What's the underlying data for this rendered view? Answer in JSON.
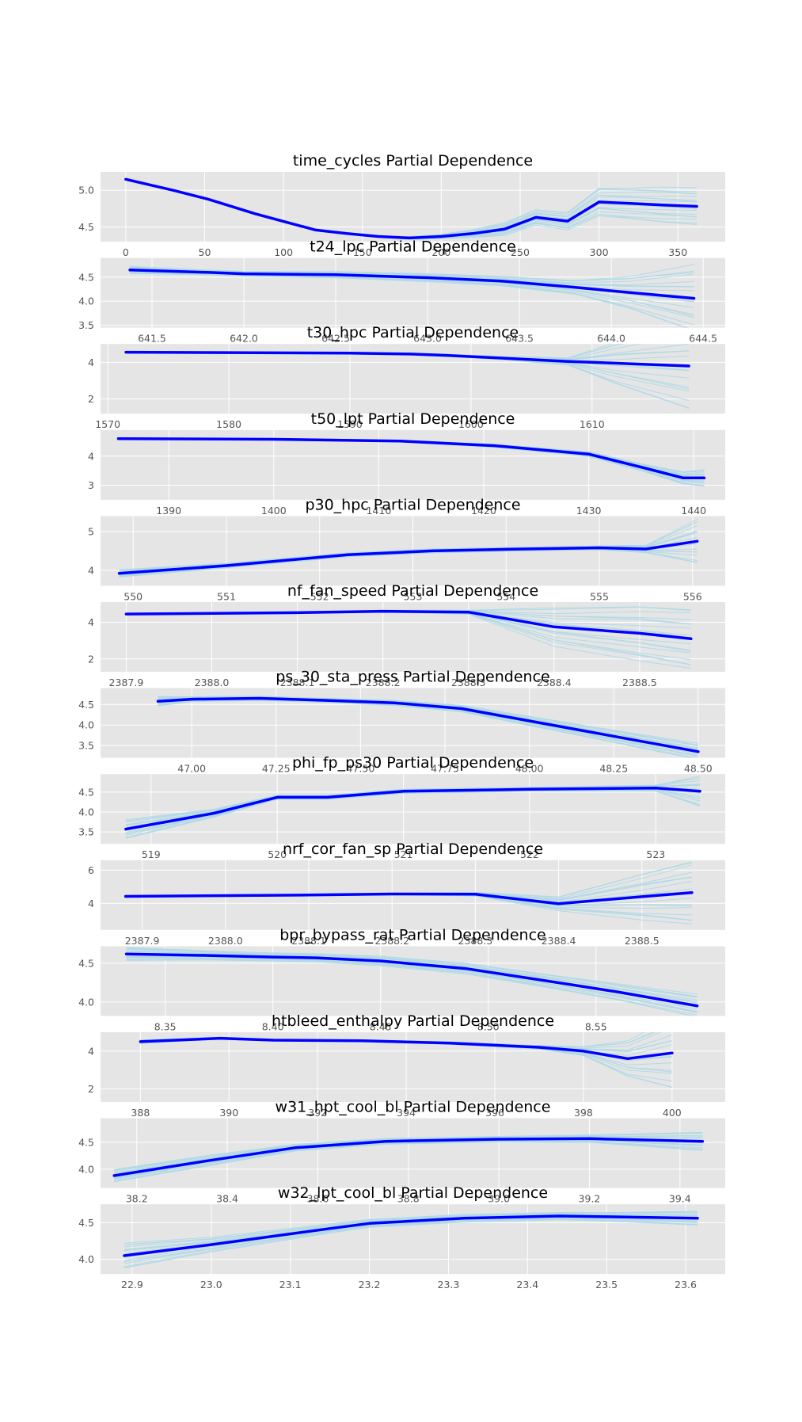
{
  "colors": {
    "panel_bg": "#e5e5e5",
    "grid": "#ffffff",
    "ice_lines": "#add8e6",
    "pd_line": "#0000ff"
  },
  "chart_data": [
    {
      "type": "line",
      "title": "time_cycles Partial Dependence",
      "grid": true,
      "xlim": [
        -16,
        380
      ],
      "ylim": [
        4.3,
        5.25
      ],
      "xticks": [
        0,
        50,
        100,
        150,
        200,
        250,
        300,
        350
      ],
      "xtick_labels": [
        "0",
        "50",
        "100",
        "150",
        "200",
        "250",
        "300",
        "350"
      ],
      "yticks": [
        4.5,
        5.0
      ],
      "ytick_labels": [
        "4.5",
        "5.0"
      ],
      "x": [
        0,
        30,
        52,
        82,
        120,
        140,
        160,
        180,
        200,
        220,
        240,
        260,
        280,
        300,
        320,
        340,
        362
      ],
      "pd": [
        5.15,
        5.0,
        4.88,
        4.68,
        4.46,
        4.41,
        4.37,
        4.35,
        4.37,
        4.41,
        4.47,
        4.63,
        4.58,
        4.84,
        4.82,
        4.8,
        4.78
      ],
      "ice_spread": [
        0,
        0,
        0,
        0,
        0,
        0.01,
        0.01,
        0.02,
        0.03,
        0.05,
        0.08,
        0.1,
        0.12,
        0.2,
        0.22,
        0.24,
        0.24
      ]
    },
    {
      "type": "line",
      "title": "t24_lpc Partial Dependence",
      "grid": true,
      "xlim": [
        641.22,
        644.62
      ],
      "ylim": [
        3.45,
        4.9
      ],
      "xticks": [
        641.5,
        642.0,
        642.5,
        643.0,
        643.5,
        644.0,
        644.5
      ],
      "xtick_labels": [
        "641.5",
        "642.0",
        "642.5",
        "643.0",
        "643.5",
        "644.0",
        "644.5"
      ],
      "yticks": [
        3.5,
        4.0,
        4.5
      ],
      "ytick_labels": [
        "3.5",
        "4.0",
        "4.5"
      ],
      "x": [
        641.38,
        641.8,
        642.0,
        642.5,
        643.0,
        643.4,
        643.8,
        644.1,
        644.45
      ],
      "pd": [
        4.65,
        4.6,
        4.57,
        4.55,
        4.49,
        4.42,
        4.29,
        4.18,
        4.06
      ],
      "ice_spread": [
        0.08,
        0.05,
        0.05,
        0.06,
        0.08,
        0.1,
        0.15,
        0.35,
        0.7
      ]
    },
    {
      "type": "line",
      "title": "t30_hpc Partial Dependence",
      "grid": true,
      "xlim": [
        1569.4,
        1621.0
      ],
      "ylim": [
        1.2,
        5.0
      ],
      "xticks": [
        1570,
        1580,
        1590,
        1600,
        1610
      ],
      "xtick_labels": [
        "1570",
        "1580",
        "1590",
        "1600",
        "1610"
      ],
      "yticks": [
        2,
        4
      ],
      "ytick_labels": [
        "2",
        "4"
      ],
      "x": [
        1571.5,
        1580,
        1590,
        1595,
        1598,
        1602,
        1608,
        1612,
        1618
      ],
      "pd": [
        4.55,
        4.53,
        4.5,
        4.45,
        4.38,
        4.25,
        4.05,
        3.95,
        3.8
      ],
      "ice_spread": [
        0.05,
        0.05,
        0.05,
        0.05,
        0.06,
        0.08,
        0.2,
        1.2,
        2.4
      ]
    },
    {
      "type": "line",
      "title": "t50_lpt Partial Dependence",
      "grid": true,
      "xlim": [
        1383.5,
        1443.0
      ],
      "ylim": [
        2.5,
        4.9
      ],
      "xticks": [
        1390,
        1400,
        1410,
        1420,
        1430,
        1440
      ],
      "xtick_labels": [
        "1390",
        "1400",
        "1410",
        "1420",
        "1430",
        "1440"
      ],
      "yticks": [
        3,
        4
      ],
      "ytick_labels": [
        "3",
        "4"
      ],
      "x": [
        1385.2,
        1400,
        1412,
        1421,
        1430,
        1435,
        1439,
        1441
      ],
      "pd": [
        4.6,
        4.58,
        4.52,
        4.36,
        4.07,
        3.62,
        3.25,
        3.25
      ],
      "ice_spread": [
        0.03,
        0.03,
        0.03,
        0.05,
        0.08,
        0.12,
        0.22,
        0.3
      ]
    },
    {
      "type": "line",
      "title": "p30_hpc Partial Dependence",
      "grid": true,
      "xlim": [
        549.65,
        556.35
      ],
      "ylim": [
        3.6,
        5.4
      ],
      "xticks": [
        550,
        551,
        552,
        553,
        554,
        555,
        556
      ],
      "xtick_labels": [
        "550",
        "551",
        "552",
        "553",
        "554",
        "555",
        "556"
      ],
      "yticks": [
        4,
        5
      ],
      "ytick_labels": [
        "4",
        "5"
      ],
      "x": [
        549.85,
        551.0,
        552.3,
        553.2,
        554.0,
        555.0,
        555.5,
        556.05
      ],
      "pd": [
        3.92,
        4.12,
        4.4,
        4.5,
        4.54,
        4.58,
        4.55,
        4.75
      ],
      "ice_spread": [
        0.1,
        0.06,
        0.05,
        0.05,
        0.05,
        0.05,
        0.1,
        0.6
      ]
    },
    {
      "type": "line",
      "title": "nf_fan_speed Partial Dependence",
      "grid": true,
      "xlim": [
        2387.87,
        2388.6
      ],
      "ylim": [
        1.3,
        5.1
      ],
      "xticks": [
        2387.9,
        2388.0,
        2388.1,
        2388.2,
        2388.3,
        2388.4,
        2388.5
      ],
      "xtick_labels": [
        "2387.9",
        "2388.0",
        "2388.1",
        "2388.2",
        "2388.3",
        "2388.4",
        "2388.5"
      ],
      "yticks": [
        2,
        4
      ],
      "ytick_labels": [
        "2",
        "4"
      ],
      "x": [
        2387.9,
        2388.1,
        2388.2,
        2388.3,
        2388.4,
        2388.5,
        2388.56
      ],
      "pd": [
        4.45,
        4.52,
        4.6,
        4.55,
        3.75,
        3.4,
        3.1
      ],
      "ice_spread": [
        0.05,
        0.05,
        0.05,
        0.1,
        1.0,
        1.5,
        1.7
      ]
    },
    {
      "type": "line",
      "title": "ps_30_sta_press Partial Dependence",
      "grid": true,
      "xlim": [
        46.73,
        48.58
      ],
      "ylim": [
        3.2,
        4.9
      ],
      "xticks": [
        47.0,
        47.25,
        47.5,
        47.75,
        48.0,
        48.25,
        48.5
      ],
      "xtick_labels": [
        "47.00",
        "47.25",
        "47.50",
        "47.75",
        "48.00",
        "48.25",
        "48.50"
      ],
      "yticks": [
        3.5,
        4.0,
        4.5
      ],
      "ytick_labels": [
        "3.5",
        "4.0",
        "4.5"
      ],
      "x": [
        46.9,
        47.0,
        47.2,
        47.4,
        47.6,
        47.8,
        48.0,
        48.2,
        48.5
      ],
      "pd": [
        4.58,
        4.63,
        4.65,
        4.6,
        4.54,
        4.4,
        4.1,
        3.8,
        3.35
      ],
      "ice_spread": [
        0.12,
        0.06,
        0.05,
        0.05,
        0.06,
        0.08,
        0.12,
        0.15,
        0.2
      ]
    },
    {
      "type": "line",
      "title": "phi_fp_ps30 Partial Dependence",
      "grid": true,
      "xlim": [
        518.6,
        523.55
      ],
      "ylim": [
        3.2,
        4.95
      ],
      "xticks": [
        519,
        520,
        521,
        522,
        523
      ],
      "xtick_labels": [
        "519",
        "520",
        "521",
        "522",
        "523"
      ],
      "yticks": [
        3.5,
        4.0,
        4.5
      ],
      "ytick_labels": [
        "3.5",
        "4.0",
        "4.5"
      ],
      "x": [
        518.8,
        519.5,
        520.0,
        520.4,
        521.0,
        522.0,
        523.0,
        523.35
      ],
      "pd": [
        3.57,
        3.97,
        4.37,
        4.37,
        4.52,
        4.57,
        4.6,
        4.52
      ],
      "ice_spread": [
        0.25,
        0.1,
        0.05,
        0.05,
        0.05,
        0.05,
        0.08,
        0.4
      ]
    },
    {
      "type": "line",
      "title": "nrf_cor_fan_sp Partial Dependence",
      "grid": true,
      "xlim": [
        2387.85,
        2388.6
      ],
      "ylim": [
        2.4,
        6.6
      ],
      "xticks": [
        2387.9,
        2388.0,
        2388.1,
        2388.2,
        2388.3,
        2388.4,
        2388.5
      ],
      "xtick_labels": [
        "2387.9",
        "2388.0",
        "2388.1",
        "2388.2",
        "2388.3",
        "2388.4",
        "2388.5"
      ],
      "yticks": [
        4,
        6
      ],
      "ytick_labels": [
        "4",
        "6"
      ],
      "x": [
        2387.88,
        2388.1,
        2388.2,
        2388.3,
        2388.4,
        2388.5,
        2388.56
      ],
      "pd": [
        4.42,
        4.5,
        4.56,
        4.55,
        3.98,
        4.4,
        4.65
      ],
      "ice_spread": [
        0.05,
        0.05,
        0.05,
        0.1,
        0.4,
        1.4,
        2.0
      ]
    },
    {
      "type": "line",
      "title": "bpr_bypass_rat Partial Dependence",
      "grid": true,
      "xlim": [
        8.32,
        8.61
      ],
      "ylim": [
        3.82,
        4.72
      ],
      "xticks": [
        8.35,
        8.4,
        8.45,
        8.5,
        8.55
      ],
      "xtick_labels": [
        "8.35",
        "8.40",
        "8.45",
        "8.50",
        "8.55"
      ],
      "yticks": [
        4.0,
        4.5
      ],
      "ytick_labels": [
        "4.0",
        "4.5"
      ],
      "x": [
        8.332,
        8.37,
        8.4,
        8.42,
        8.45,
        8.49,
        8.53,
        8.56,
        8.597
      ],
      "pd": [
        4.62,
        4.6,
        4.58,
        4.57,
        4.53,
        4.43,
        4.26,
        4.13,
        3.95
      ],
      "ice_spread": [
        0.09,
        0.06,
        0.05,
        0.05,
        0.06,
        0.07,
        0.09,
        0.11,
        0.15
      ]
    },
    {
      "type": "line",
      "title": "htbleed_enthalpy Partial Dependence",
      "grid": true,
      "xlim": [
        387.1,
        401.2
      ],
      "ylim": [
        1.3,
        5.0
      ],
      "xticks": [
        388,
        390,
        392,
        394,
        396,
        398,
        400
      ],
      "xtick_labels": [
        "388",
        "390",
        "392",
        "394",
        "396",
        "398",
        "400"
      ],
      "yticks": [
        2,
        4
      ],
      "ytick_labels": [
        "2",
        "4"
      ],
      "x": [
        388,
        389.8,
        391,
        393,
        395,
        397,
        398,
        399,
        400
      ],
      "pd": [
        4.5,
        4.68,
        4.58,
        4.55,
        4.42,
        4.2,
        4.0,
        3.6,
        3.9
      ],
      "ice_spread": [
        0.1,
        0.05,
        0.05,
        0.05,
        0.06,
        0.1,
        0.25,
        1.0,
        1.9
      ]
    },
    {
      "type": "line",
      "title": "w31_hpt_cool_bl Partial Dependence",
      "grid": true,
      "xlim": [
        38.12,
        39.5
      ],
      "ylim": [
        3.65,
        4.95
      ],
      "xticks": [
        38.2,
        38.4,
        38.6,
        38.8,
        39.0,
        39.2,
        39.4
      ],
      "xtick_labels": [
        "38.2",
        "38.4",
        "38.6",
        "38.8",
        "39.0",
        "39.2",
        "39.4"
      ],
      "yticks": [
        4.0,
        4.5
      ],
      "ytick_labels": [
        "4.0",
        "4.5"
      ],
      "x": [
        38.15,
        38.35,
        38.55,
        38.75,
        39.0,
        39.2,
        39.45
      ],
      "pd": [
        3.88,
        4.15,
        4.4,
        4.52,
        4.56,
        4.57,
        4.52
      ],
      "ice_spread": [
        0.12,
        0.1,
        0.06,
        0.05,
        0.05,
        0.07,
        0.18
      ]
    },
    {
      "type": "line",
      "title": "w32_lpt_cool_bl Partial Dependence",
      "grid": true,
      "xlim": [
        22.86,
        23.65
      ],
      "ylim": [
        3.8,
        4.75
      ],
      "xticks": [
        22.9,
        23.0,
        23.1,
        23.2,
        23.3,
        23.4,
        23.5,
        23.6
      ],
      "xtick_labels": [
        "22.9",
        "23.0",
        "23.1",
        "23.2",
        "23.3",
        "23.4",
        "23.5",
        "23.6"
      ],
      "yticks": [
        4.0,
        4.5
      ],
      "ytick_labels": [
        "4.0",
        "4.5"
      ],
      "x": [
        22.89,
        23.0,
        23.15,
        23.2,
        23.32,
        23.44,
        23.5,
        23.615
      ],
      "pd": [
        4.05,
        4.2,
        4.42,
        4.49,
        4.56,
        4.59,
        4.58,
        4.56
      ],
      "ice_spread": [
        0.18,
        0.1,
        0.06,
        0.05,
        0.05,
        0.05,
        0.06,
        0.1
      ]
    }
  ]
}
